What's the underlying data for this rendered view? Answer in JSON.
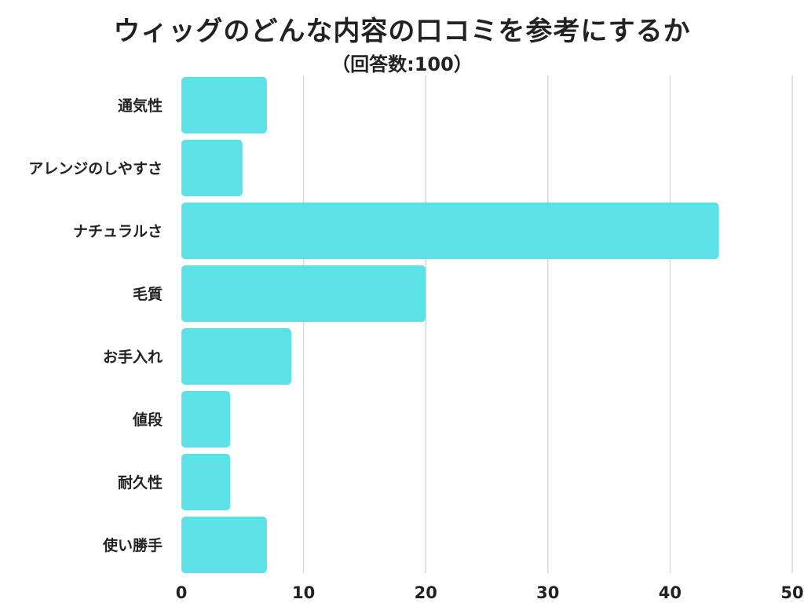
{
  "chart_data": {
    "type": "bar",
    "orientation": "horizontal",
    "title": "ウィッグのどんな内容の口コミを参考にするか",
    "subtitle": "（回答数:100）",
    "categories": [
      "通気性",
      "アレンジのしやすさ",
      "ナチュラルさ",
      "毛質",
      "お手入れ",
      "値段",
      "耐久性",
      "使い勝手"
    ],
    "values": [
      7,
      5,
      44,
      20,
      9,
      4,
      4,
      7
    ],
    "xlim": [
      0,
      50
    ],
    "xticks": [
      0,
      10,
      20,
      30,
      40,
      50
    ],
    "grid": true,
    "bar_color": "#5ce1e6",
    "grid_color": "#d9d9d9"
  }
}
